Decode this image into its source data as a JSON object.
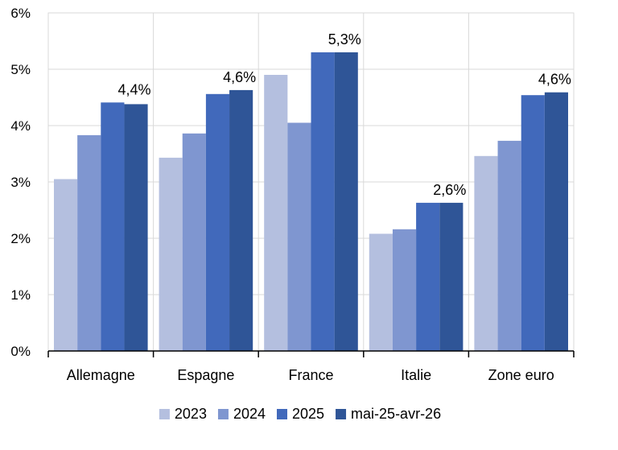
{
  "chart_data": {
    "type": "bar",
    "categories": [
      "Allemagne",
      "Espagne",
      "France",
      "Italie",
      "Zone euro"
    ],
    "series": [
      {
        "name": "2023",
        "values": [
          3.05,
          3.43,
          4.9,
          2.08,
          3.46
        ],
        "color": "#b4bfdf"
      },
      {
        "name": "2024",
        "values": [
          3.83,
          3.86,
          4.05,
          2.16,
          3.73
        ],
        "color": "#7f96d0"
      },
      {
        "name": "2025",
        "values": [
          4.41,
          4.56,
          5.3,
          2.63,
          4.54
        ],
        "color": "#4169bb"
      },
      {
        "name": "mai-25-avr-26",
        "values": [
          4.38,
          4.63,
          5.3,
          2.63,
          4.59
        ],
        "color": "#2f5597"
      }
    ],
    "data_labels": [
      "4,4%",
      "4,6%",
      "5,3%",
      "2,6%",
      "4,6%"
    ],
    "ylim": [
      0,
      6
    ],
    "yticks": [
      {
        "value": 0,
        "label": "0%"
      },
      {
        "value": 1,
        "label": "1%"
      },
      {
        "value": 2,
        "label": "2%"
      },
      {
        "value": 3,
        "label": "3%"
      },
      {
        "value": 4,
        "label": "4%"
      },
      {
        "value": 5,
        "label": "5%"
      },
      {
        "value": 6,
        "label": "6%"
      }
    ],
    "grid": true,
    "legend_position": "bottom",
    "title": "",
    "xlabel": "",
    "ylabel": ""
  }
}
